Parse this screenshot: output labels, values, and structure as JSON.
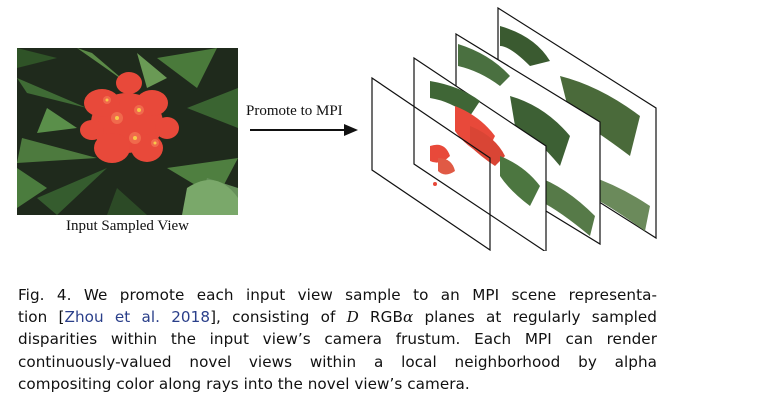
{
  "figure": {
    "input_label": "Input Sampled View",
    "arrow_label": "Promote to MPI"
  },
  "caption": {
    "line1": "Fig. 4.  We promote each input view sample to an MPI scene representa-",
    "line2_a": "tion [",
    "line2_cite": "Zhou et al. 2018",
    "line2_b": "], consisting of ",
    "line2_math_d": "D",
    "line2_c": " RGB",
    "line2_math_alpha": "α",
    "line2_d": " planes at regularly sampled",
    "line3": "disparities within the input view’s camera frustum. Each MPI can render",
    "line4": "continuously-valued novel views within a local neighborhood by alpha",
    "line5": "compositing color along rays into the novel view’s camera."
  },
  "colors": {
    "flower": "#e8493a",
    "foliage_dark": "#1f2a1c",
    "foliage": "#3f6b35",
    "citation": "#2a3f8a"
  }
}
